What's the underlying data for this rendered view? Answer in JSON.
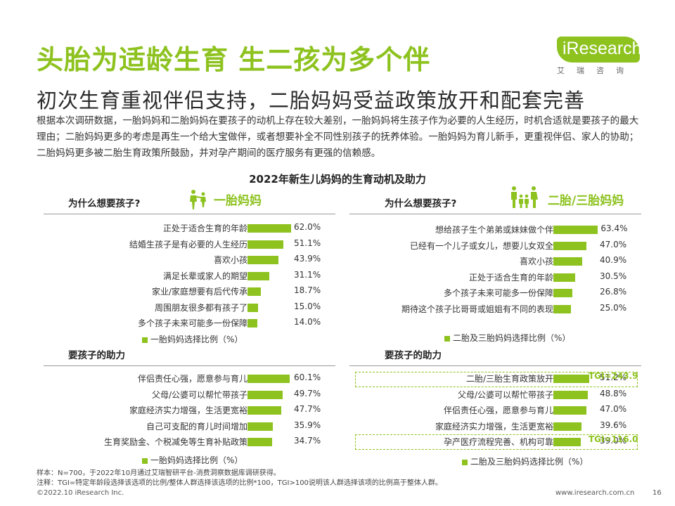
{
  "header": {
    "title": "头胎为适龄生育 生二孩为多个伴",
    "subtitle": "初次生育重视伴侣支持，二胎妈妈受益政策放开和配套完善",
    "intro": "根据本次调研数据，一胎妈妈和二胎妈妈在要孩子的动机上存在较大差别，一胎妈妈将生孩子作为必要的人生经历，时机合适就是要孩子的最大理由；二胎妈妈更多的考虑是再生一个给大宝做伴，或者想要补全不同性别孩子的抚养体验。一胎妈妈为育儿新手，更重视伴侣、家人的协助；二胎妈妈更多被二胎生育政策所鼓励，并对孕产期间的医疗服务有更强的信赖感。"
  },
  "logo": {
    "name": "iResearch",
    "sub": "艾瑞咨询"
  },
  "chart_title": "2022年新生儿妈妈的生育动机及助力",
  "chart_data": [
    {
      "type": "bar",
      "panel": "一胎妈妈",
      "title": "为什么想要孩子?",
      "categories": [
        "正处于适合生育的年龄",
        "结婚生孩子是有必要的人生经历",
        "喜欢小孩",
        "满足长辈或家人的期望",
        "家业/家庭想要有后代传承",
        "周围朋友很多都有孩子了",
        "多个孩子未来可能多一份保障"
      ],
      "values": [
        62.0,
        51.1,
        43.9,
        31.1,
        18.7,
        15.0,
        14.0
      ],
      "value_labels": [
        "62.0%",
        "51.1%",
        "43.9%",
        "31.1%",
        "18.7%",
        "15.0%",
        "14.0%"
      ],
      "legend": "一胎妈妈选择比例（%）"
    },
    {
      "type": "bar",
      "panel": "一胎妈妈",
      "title": "要孩子的助力",
      "categories": [
        "伴侣责任心强，愿意参与育儿",
        "父母/公婆可以帮忙带孩子",
        "家庭经济实力增强，生活更宽裕",
        "自己可支配的育儿时间增加",
        "生育奖励金、个税减免等生育补贴政策"
      ],
      "values": [
        60.1,
        49.7,
        47.7,
        35.9,
        34.7
      ],
      "value_labels": [
        "60.1%",
        "49.7%",
        "47.7%",
        "35.9%",
        "34.7%"
      ],
      "legend": "一胎妈妈选择比例（%）"
    },
    {
      "type": "bar",
      "panel": "二胎/三胎妈妈",
      "title": "为什么想要孩子?",
      "categories": [
        "想给孩子生个弟弟或妹妹做个伴",
        "已经有一个儿子或女儿，想要儿女双全",
        "喜欢小孩",
        "正处于适合生育的年龄",
        "多个孩子未来可能多一份保障",
        "期待这个孩子比哥哥或姐姐有不同的表现"
      ],
      "values": [
        63.4,
        47.0,
        40.9,
        30.5,
        26.8,
        25.0
      ],
      "value_labels": [
        "63.4%",
        "47.0%",
        "40.9%",
        "30.5%",
        "26.8%",
        "25.0%"
      ],
      "legend": "二胎及三胎妈妈选择比例（%）"
    },
    {
      "type": "bar",
      "panel": "二胎/三胎妈妈",
      "title": "要孩子的助力",
      "categories": [
        "二胎/三胎生育政策放开",
        "父母/公婆可以帮忙带孩子",
        "伴侣责任心强，愿意参与育儿",
        "家庭经济实力增强，生活更宽裕",
        "孕产医疗流程完善、机构可靠"
      ],
      "values": [
        51.2,
        48.8,
        47.0,
        39.6,
        39.0
      ],
      "value_labels": [
        "51.2%",
        "48.8%",
        "47.0%",
        "39.6%",
        "39.0%"
      ],
      "annotations": [
        {
          "category_index": 0,
          "text": "TGI=243.9"
        },
        {
          "category_index": 4,
          "text": "TGI=116.0"
        }
      ],
      "legend": "二胎及三胎妈妈选择比例（%）"
    }
  ],
  "panels": {
    "left_tag": "一胎妈妈",
    "right_tag": "二胎/三胎妈妈",
    "q1": "为什么想要孩子?",
    "q2": "要孩子的助力"
  },
  "footer": {
    "sample": "样本：N=700，于2022年10月通过艾瑞智研平台-消费洞察数据库调研获得。",
    "note": "注释：TGI=特定年龄段选择该选项的比例/整体人群选择该选项的比例*100，TGI>100说明该人群选择该项的比例高于整体人群。",
    "copyright": "©2022.10 iResearch Inc.",
    "url": "www.iresearch.com.cn",
    "page": "16"
  },
  "colors": {
    "accent": "#8dc21f"
  }
}
